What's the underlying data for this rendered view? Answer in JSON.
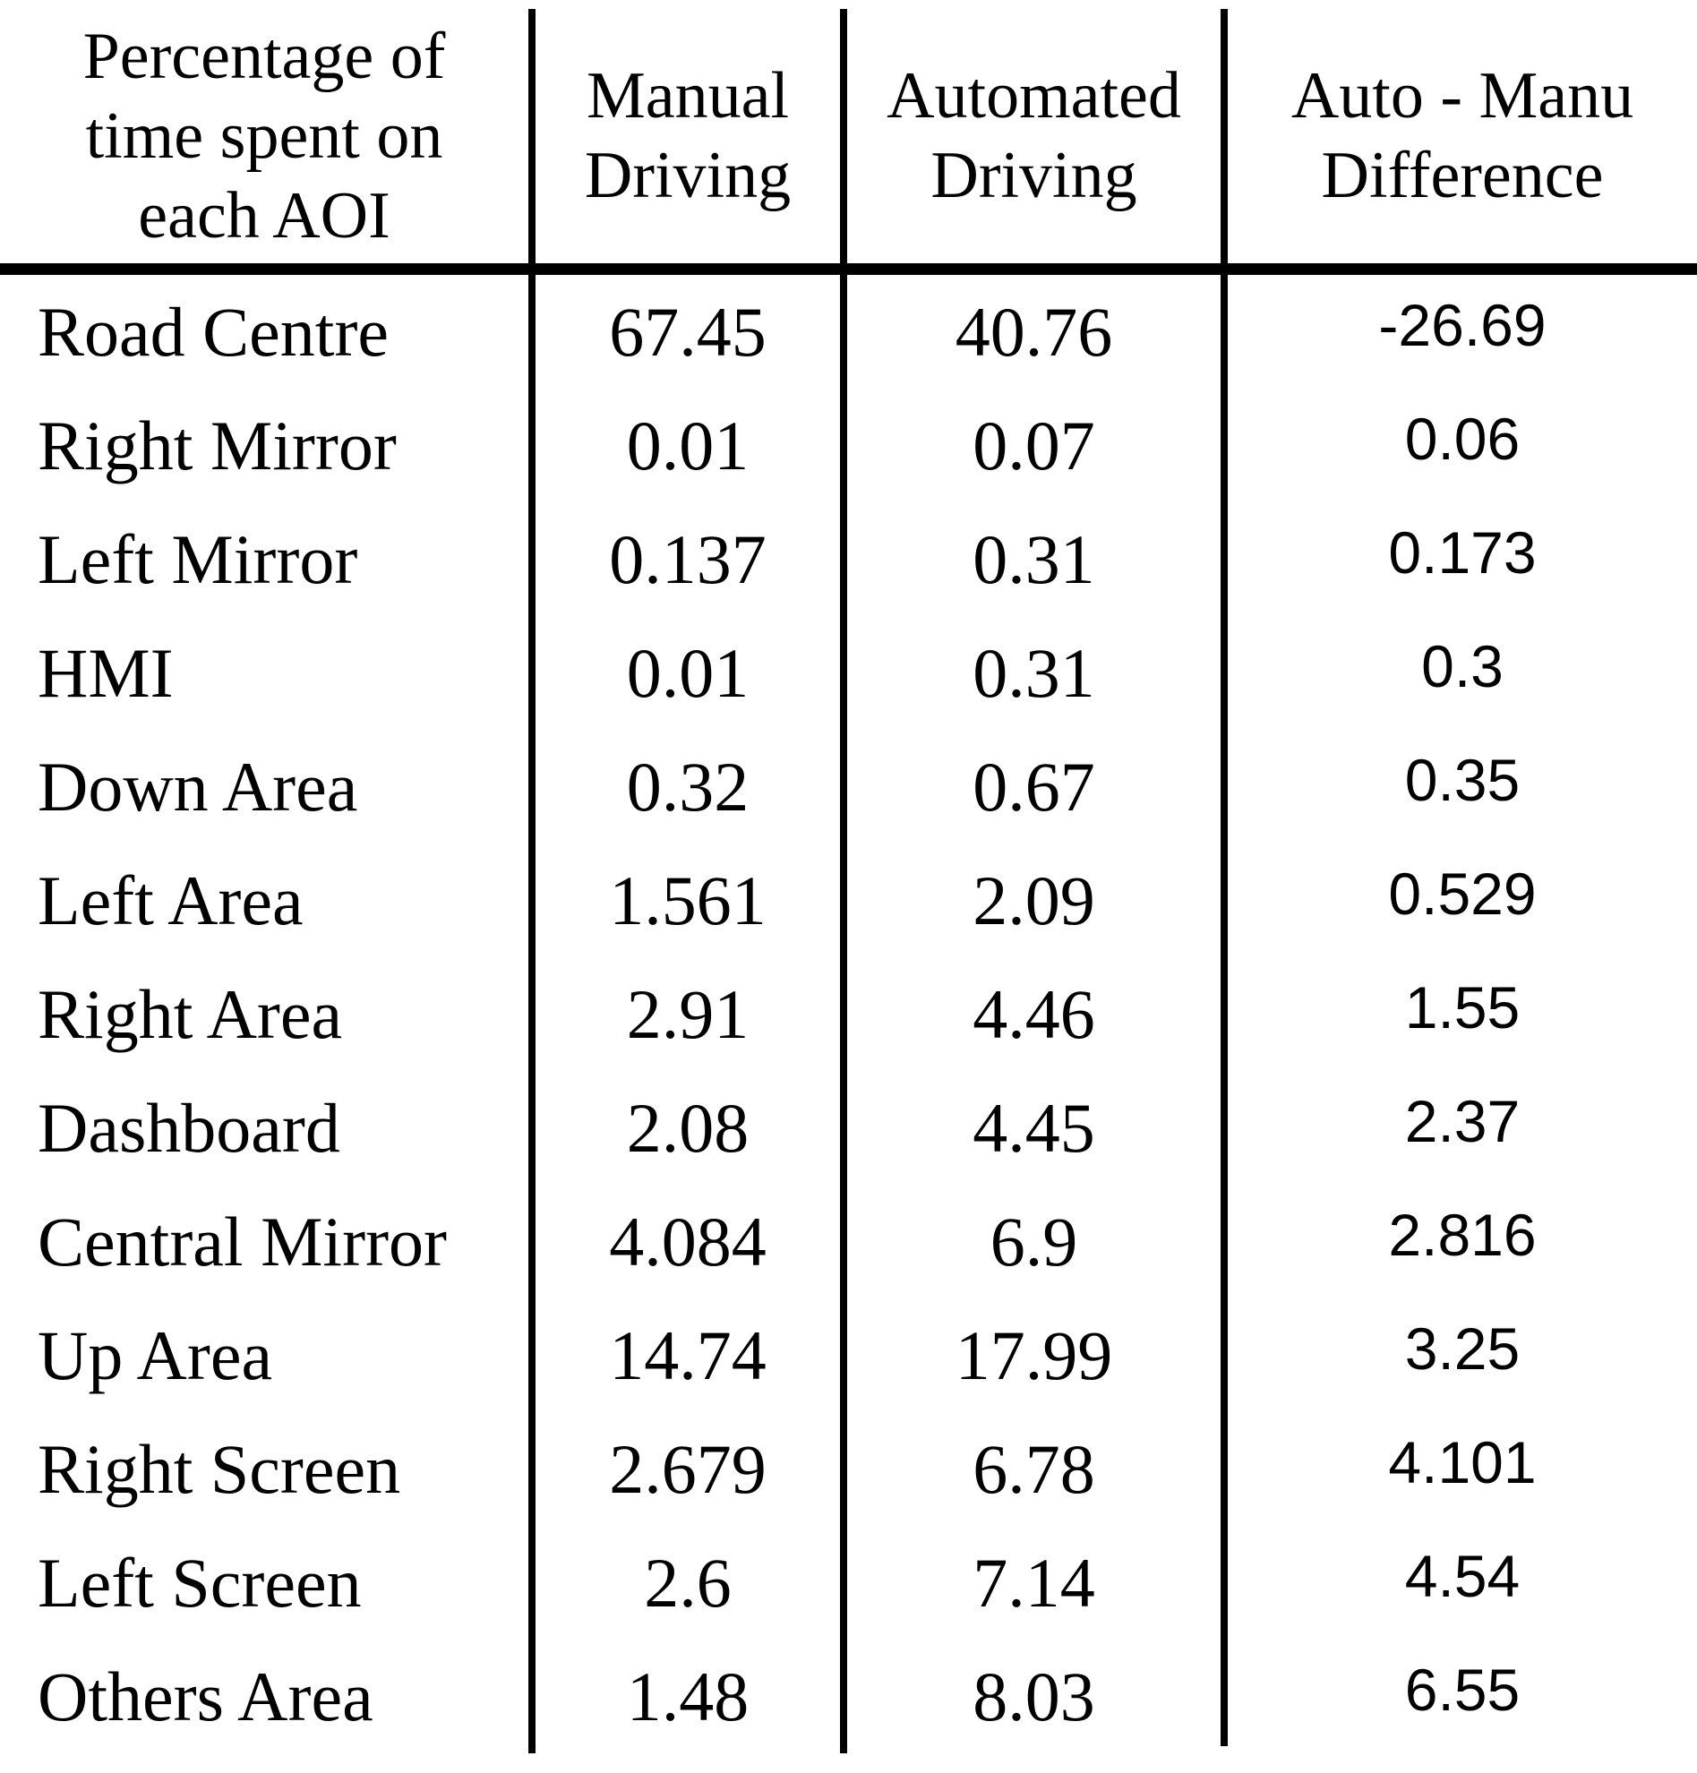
{
  "title": "Percentage of time spent on each AOI",
  "colors": {
    "text": "#000000",
    "background": "#ffffff",
    "rule": "#000000"
  },
  "table": {
    "header": {
      "col1": [
        "Percentage of",
        "time spent on",
        "each AOI"
      ],
      "col2": [
        "Manual",
        "Driving"
      ],
      "col3": [
        "Automated",
        "Driving"
      ],
      "col4": [
        "Auto - Manu",
        "Difference"
      ]
    },
    "rows": [
      {
        "aoi": "Road Centre",
        "manual": "67.45",
        "automated": "40.76",
        "difference": "-26.69"
      },
      {
        "aoi": "Right Mirror",
        "manual": "0.01",
        "automated": "0.07",
        "difference": "0.06"
      },
      {
        "aoi": "Left Mirror",
        "manual": "0.137",
        "automated": "0.31",
        "difference": "0.173"
      },
      {
        "aoi": "HMI",
        "manual": "0.01",
        "automated": "0.31",
        "difference": "0.3"
      },
      {
        "aoi": "Down Area",
        "manual": "0.32",
        "automated": "0.67",
        "difference": "0.35"
      },
      {
        "aoi": "Left Area",
        "manual": "1.561",
        "automated": "2.09",
        "difference": "0.529"
      },
      {
        "aoi": "Right Area",
        "manual": "2.91",
        "automated": "4.46",
        "difference": "1.55"
      },
      {
        "aoi": "Dashboard",
        "manual": "2.08",
        "automated": "4.45",
        "difference": "2.37"
      },
      {
        "aoi": "Central Mirror",
        "manual": "4.084",
        "automated": "6.9",
        "difference": "2.816"
      },
      {
        "aoi": "Up Area",
        "manual": "14.74",
        "automated": "17.99",
        "difference": "3.25"
      },
      {
        "aoi": "Right Screen",
        "manual": "2.679",
        "automated": "6.78",
        "difference": "4.101"
      },
      {
        "aoi": "Left Screen",
        "manual": "2.6",
        "automated": "7.14",
        "difference": "4.54"
      },
      {
        "aoi": "Others Area",
        "manual": "1.48",
        "automated": "8.03",
        "difference": "6.55"
      }
    ]
  },
  "chart_data": {
    "type": "table",
    "title": "Percentage of time spent on each AOI",
    "categories": [
      "Road Centre",
      "Right Mirror",
      "Left Mirror",
      "HMI",
      "Down Area",
      "Left Area",
      "Right Area",
      "Dashboard",
      "Central Mirror",
      "Up Area",
      "Right Screen",
      "Left Screen",
      "Others Area"
    ],
    "series": [
      {
        "name": "Manual Driving",
        "values": [
          67.45,
          0.01,
          0.137,
          0.01,
          0.32,
          1.561,
          2.91,
          2.08,
          4.084,
          14.74,
          2.679,
          2.6,
          1.48
        ]
      },
      {
        "name": "Automated Driving",
        "values": [
          40.76,
          0.07,
          0.31,
          0.31,
          0.67,
          2.09,
          4.46,
          4.45,
          6.9,
          17.99,
          6.78,
          7.14,
          8.03
        ]
      },
      {
        "name": "Auto - Manu Difference",
        "values": [
          -26.69,
          0.06,
          0.173,
          0.3,
          0.35,
          0.529,
          1.55,
          2.37,
          2.816,
          3.25,
          4.101,
          4.54,
          6.55
        ]
      }
    ]
  }
}
